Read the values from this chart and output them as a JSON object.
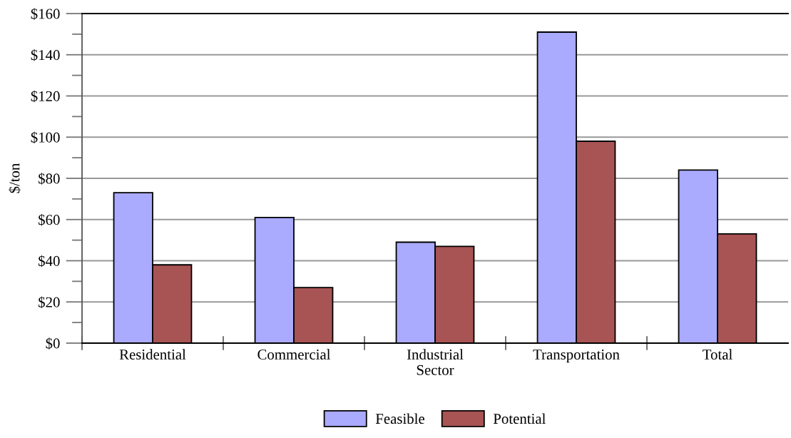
{
  "chart_data": {
    "type": "bar",
    "ylabel": "$/ton",
    "categories": [
      "Residential",
      "Commercial",
      "Industrial\nSector",
      "Transportation",
      "Total"
    ],
    "series": [
      {
        "name": "Feasible",
        "color": "#aaaaff",
        "values": [
          73,
          61,
          49,
          151,
          84
        ]
      },
      {
        "name": "Potential",
        "color": "#a85454",
        "values": [
          38,
          27,
          47,
          98,
          53
        ]
      }
    ],
    "ylim": [
      0,
      160
    ],
    "yticks": [
      {
        "value": 0,
        "label": "$0"
      },
      {
        "value": 20,
        "label": "$20"
      },
      {
        "value": 40,
        "label": "$40"
      },
      {
        "value": 60,
        "label": "$60"
      },
      {
        "value": 80,
        "label": "$80"
      },
      {
        "value": 100,
        "label": "$100"
      },
      {
        "value": 120,
        "label": "$120"
      },
      {
        "value": 140,
        "label": "$140"
      },
      {
        "value": 160,
        "label": "$160"
      }
    ],
    "grid": "y",
    "legend": "bottom"
  }
}
